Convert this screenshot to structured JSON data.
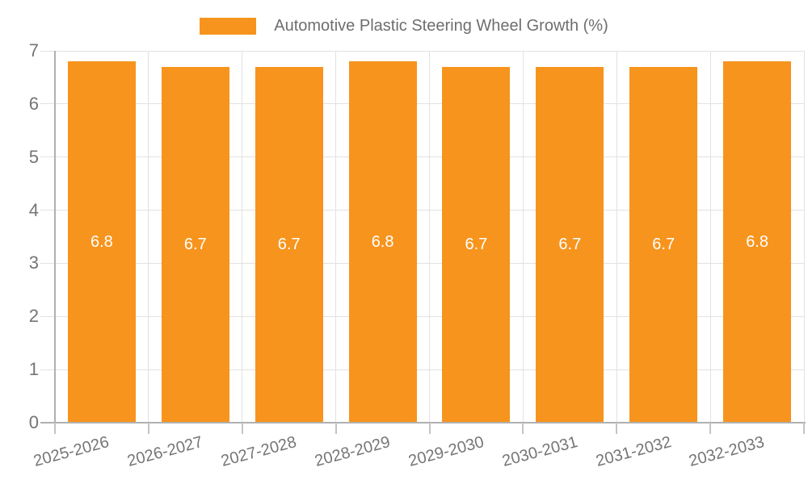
{
  "legend": {
    "label": "Automotive Plastic Steering Wheel Growth (%)"
  },
  "chart_data": {
    "type": "bar",
    "title": "Automotive Plastic Steering Wheel Growth (%)",
    "categories": [
      "2025-2026",
      "2026-2027",
      "2027-2028",
      "2028-2029",
      "2029-2030",
      "2030-2031",
      "2031-2032",
      "2032-2033"
    ],
    "values": [
      6.8,
      6.7,
      6.7,
      6.8,
      6.7,
      6.7,
      6.7,
      6.8
    ],
    "bar_labels": [
      "6.8",
      "6.7",
      "6.7",
      "6.8",
      "6.7",
      "6.7",
      "6.7",
      "6.8"
    ],
    "xlabel": "",
    "ylabel": "",
    "ylim": [
      0,
      7
    ],
    "yticks": [
      0,
      1,
      2,
      3,
      4,
      5,
      6,
      7
    ],
    "grid": true,
    "legend_position": "top-center",
    "x_label_rotation_deg": -15,
    "colors": {
      "bar": "#F7941D",
      "bar_label_text": "#FFFFFF",
      "axis_text": "#757575",
      "legend_text": "#6E6E6E",
      "gridline": "#E2E2E2",
      "axis_line": "#B0B0B0",
      "tick": "#C4C4C4",
      "background": "#FFFFFF"
    }
  }
}
